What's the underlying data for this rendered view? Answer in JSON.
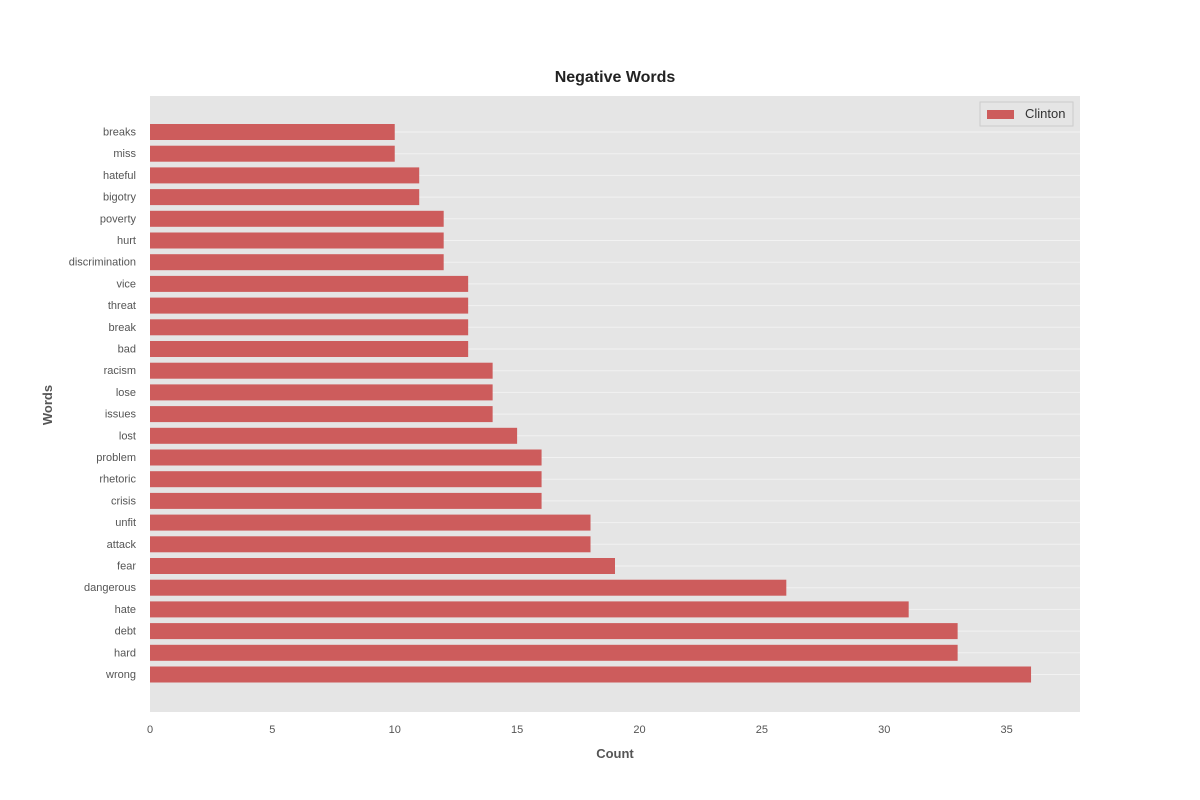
{
  "chart_data": {
    "type": "bar",
    "orientation": "horizontal",
    "title": "Negative Words",
    "xlabel": "Count",
    "ylabel": "Words",
    "xlim": [
      0,
      38
    ],
    "xticks": [
      0,
      5,
      10,
      15,
      20,
      25,
      30,
      35
    ],
    "grid": true,
    "legend_position": "top-right",
    "categories": [
      "breaks",
      "miss",
      "hateful",
      "bigotry",
      "poverty",
      "hurt",
      "discrimination",
      "vice",
      "threat",
      "break",
      "bad",
      "racism",
      "lose",
      "issues",
      "lost",
      "problem",
      "rhetoric",
      "crisis",
      "unfit",
      "attack",
      "fear",
      "dangerous",
      "hate",
      "debt",
      "hard",
      "wrong"
    ],
    "series": [
      {
        "name": "Clinton",
        "color": "#cd5c5c",
        "values": [
          10,
          10,
          11,
          11,
          12,
          12,
          12,
          13,
          13,
          13,
          13,
          14,
          14,
          14,
          15,
          16,
          16,
          16,
          18,
          18,
          19,
          26,
          31,
          33,
          33,
          36
        ]
      }
    ],
    "colors": {
      "plot_background": "#e5e5e5",
      "gridline": "#f2f2f2",
      "bar": "#cd5c5c"
    }
  }
}
